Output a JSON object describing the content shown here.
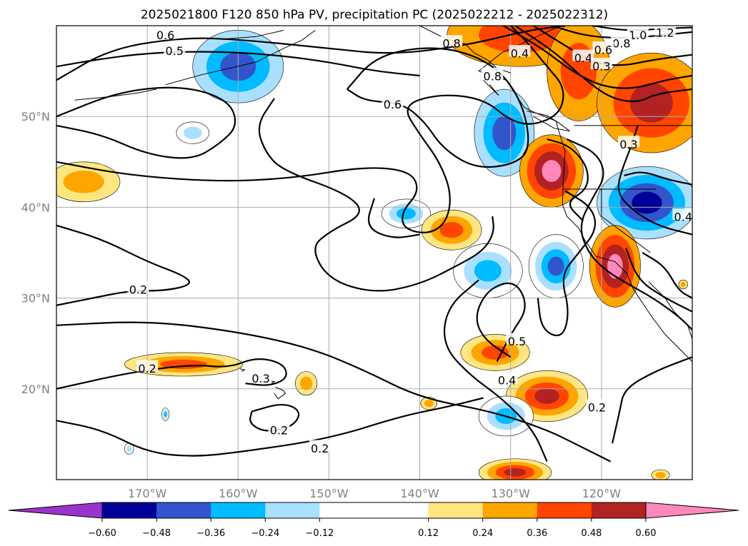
{
  "chart_data": {
    "type": "map",
    "title": "2025021800 F120 850 hPa PV, precipitation PC (2025022212 - 2025022312)",
    "xaxis": {
      "tick_labels": [
        "170°W",
        "160°W",
        "150°W",
        "140°W",
        "130°W",
        "120°W"
      ],
      "tick_values": [
        -170,
        -160,
        -150,
        -140,
        -130,
        -120
      ],
      "range": [
        -180,
        -110
      ]
    },
    "yaxis": {
      "tick_labels": [
        "20°N",
        "30°N",
        "40°N",
        "50°N"
      ],
      "tick_values": [
        20,
        30,
        40,
        50
      ],
      "range": [
        10,
        60
      ]
    },
    "grid": true,
    "colorbar": {
      "extend": "both",
      "boundaries": [
        -0.72,
        -0.6,
        -0.48,
        -0.36,
        -0.24,
        -0.12,
        0.12,
        0.24,
        0.36,
        0.48,
        0.6,
        0.72
      ],
      "tick_values": [
        -0.6,
        -0.48,
        -0.36,
        -0.24,
        -0.12,
        0.12,
        0.24,
        0.36,
        0.48,
        0.6
      ],
      "tick_labels": [
        "−0.60",
        "−0.48",
        "−0.36",
        "−0.24",
        "−0.12",
        "0.12",
        "0.24",
        "0.36",
        "0.48",
        "0.60"
      ],
      "colors": [
        "#9933cc",
        "#000099",
        "#3355cc",
        "#00bbff",
        "#aae0ff",
        "#ffffff",
        "#ffe680",
        "#ffa500",
        "#ff4500",
        "#b22222",
        "#ff88bb"
      ]
    },
    "contour_labels": [
      {
        "text": "0.6",
        "lon": -168,
        "lat": 59
      },
      {
        "text": "0.5",
        "lon": -167,
        "lat": 57.3
      },
      {
        "text": "0.6",
        "lon": -143,
        "lat": 51.4
      },
      {
        "text": "0.2",
        "lon": -171,
        "lat": 31
      },
      {
        "text": "0.2",
        "lon": -170,
        "lat": 22.3
      },
      {
        "text": "0.3",
        "lon": -157.5,
        "lat": 21.2
      },
      {
        "text": "0.2",
        "lon": -155.5,
        "lat": 15.5
      },
      {
        "text": "0.2",
        "lon": -151,
        "lat": 13.5
      },
      {
        "text": "0.5",
        "lon": -129.3,
        "lat": 25.3
      },
      {
        "text": "0.4",
        "lon": -130.4,
        "lat": 21
      },
      {
        "text": "0.2",
        "lon": -120.5,
        "lat": 18
      },
      {
        "text": "0.8",
        "lon": -132,
        "lat": 54.5
      },
      {
        "text": "0.4",
        "lon": -129,
        "lat": 57
      },
      {
        "text": "1.0",
        "lon": -116,
        "lat": 59
      },
      {
        "text": "1.2",
        "lon": -113,
        "lat": 59.3
      },
      {
        "text": "0.8",
        "lon": -117.8,
        "lat": 58.1
      },
      {
        "text": "0.6",
        "lon": -119.8,
        "lat": 57.4
      },
      {
        "text": "0.4",
        "lon": -122,
        "lat": 56.5
      },
      {
        "text": "0.3",
        "lon": -120,
        "lat": 55.6
      },
      {
        "text": "0.3",
        "lon": -117,
        "lat": 47
      },
      {
        "text": "0.4",
        "lon": -111,
        "lat": 39
      },
      {
        "text": "0.8",
        "lon": -136.5,
        "lat": 58.1
      }
    ],
    "precip_pc_regions": [
      {
        "name": "n-gulf-of-alaska",
        "lon": -129,
        "lat": 59,
        "rx": 8,
        "ry": 3.5,
        "levels": [
          0.24,
          0.36
        ]
      },
      {
        "name": "bc-coast",
        "lon": -122.5,
        "lat": 55,
        "rx": 3.5,
        "ry": 5.5,
        "levels": [
          0.24,
          0.36
        ]
      },
      {
        "name": "western-canada",
        "lon": -114.5,
        "lat": 51.5,
        "rx": 6,
        "ry": 5.5,
        "levels": [
          0.24,
          0.36,
          0.48
        ]
      },
      {
        "name": "aleutians",
        "lon": -160,
        "lat": 55.5,
        "rx": 5,
        "ry": 4,
        "levels": [
          -0.24,
          -0.36,
          -0.48
        ]
      },
      {
        "name": "small-west-neg",
        "lon": -165,
        "lat": 48.2,
        "rx": 1.8,
        "ry": 1.2,
        "levels": [
          -0.12,
          -0.24
        ]
      },
      {
        "name": "neg-pacific-nw-offshore",
        "lon": -130.7,
        "lat": 48.2,
        "rx": 3.3,
        "ry": 4.8,
        "levels": [
          -0.24,
          -0.36,
          -0.48
        ]
      },
      {
        "name": "oregon-california-north",
        "lon": -125.5,
        "lat": 44,
        "rx": 3.5,
        "ry": 4,
        "levels": [
          0.24,
          0.36,
          0.48,
          0.6
        ]
      },
      {
        "name": "great-basin-negative",
        "lon": -115,
        "lat": 40.5,
        "rx": 5.5,
        "ry": 4,
        "levels": [
          -0.24,
          -0.36,
          -0.48,
          -0.6
        ]
      },
      {
        "name": "dateline-east",
        "lon": -177,
        "lat": 42.8,
        "rx": 4,
        "ry": 2.2,
        "levels": [
          0.12,
          0.24
        ]
      },
      {
        "name": "neg-140w-40n",
        "lon": -141.5,
        "lat": 39.3,
        "rx": 2.7,
        "ry": 1.6,
        "levels": [
          -0.12,
          -0.24,
          -0.36
        ]
      },
      {
        "name": "pos-135w-37n",
        "lon": -136.5,
        "lat": 37.5,
        "rx": 3.3,
        "ry": 2.2,
        "levels": [
          0.12,
          0.24,
          0.36
        ]
      },
      {
        "name": "neg-133w-33n",
        "lon": -132.5,
        "lat": 33,
        "rx": 3.8,
        "ry": 3,
        "levels": [
          -0.12,
          -0.24,
          -0.36
        ]
      },
      {
        "name": "neg-125w-33n",
        "lon": -125,
        "lat": 33.5,
        "rx": 3,
        "ry": 3.5,
        "levels": [
          -0.12,
          -0.24,
          -0.36,
          -0.48
        ]
      },
      {
        "name": "southern-california",
        "lon": -118.5,
        "lat": 33.5,
        "rx": 2.8,
        "ry": 4.5,
        "levels": [
          0.24,
          0.36,
          0.48,
          0.6
        ]
      },
      {
        "name": "hawaii-north",
        "lon": -166,
        "lat": 22.7,
        "rx": 6.5,
        "ry": 1.3,
        "levels": [
          0.12,
          0.24,
          0.36
        ]
      },
      {
        "name": "hawaii-east",
        "lon": -152.5,
        "lat": 20.6,
        "rx": 1.2,
        "ry": 1.3,
        "levels": [
          0.12,
          0.24
        ]
      },
      {
        "name": "pos-132w-24n",
        "lon": -131.7,
        "lat": 24,
        "rx": 3.8,
        "ry": 2,
        "levels": [
          0.12,
          0.24,
          0.36
        ]
      },
      {
        "name": "pos-126w-19n",
        "lon": -126,
        "lat": 19.2,
        "rx": 4.5,
        "ry": 2.8,
        "levels": [
          0.12,
          0.24,
          0.36,
          0.48
        ]
      },
      {
        "name": "neg-131w-17n",
        "lon": -130.5,
        "lat": 17,
        "rx": 3,
        "ry": 2.2,
        "levels": [
          -0.12,
          -0.24,
          -0.36
        ]
      },
      {
        "name": "pos-130w-11n",
        "lon": -129.5,
        "lat": 10.8,
        "rx": 4,
        "ry": 1.5,
        "levels": [
          0.12,
          0.24,
          0.36,
          0.48
        ]
      },
      {
        "name": "small-pos-139w-18n",
        "lon": -139,
        "lat": 18.4,
        "rx": 0.9,
        "ry": 0.7,
        "levels": [
          0.12,
          0.24
        ]
      },
      {
        "name": "small-neg-168w-17n",
        "lon": -168,
        "lat": 17.2,
        "rx": 0.4,
        "ry": 0.7,
        "levels": [
          -0.12,
          -0.24,
          -0.36
        ]
      },
      {
        "name": "small-neg-172w-13n",
        "lon": -172,
        "lat": 13.4,
        "rx": 0.5,
        "ry": 0.6,
        "levels": [
          -0.12,
          -0.24
        ]
      },
      {
        "name": "small-pos-113w-10n",
        "lon": -113.5,
        "lat": 10.5,
        "rx": 1,
        "ry": 0.6,
        "levels": [
          0.12,
          0.24
        ]
      },
      {
        "name": "small-pos-112w-31n",
        "lon": -111,
        "lat": 31.5,
        "rx": 0.5,
        "ry": 0.5,
        "levels": [
          0.12,
          0.24
        ]
      }
    ]
  }
}
